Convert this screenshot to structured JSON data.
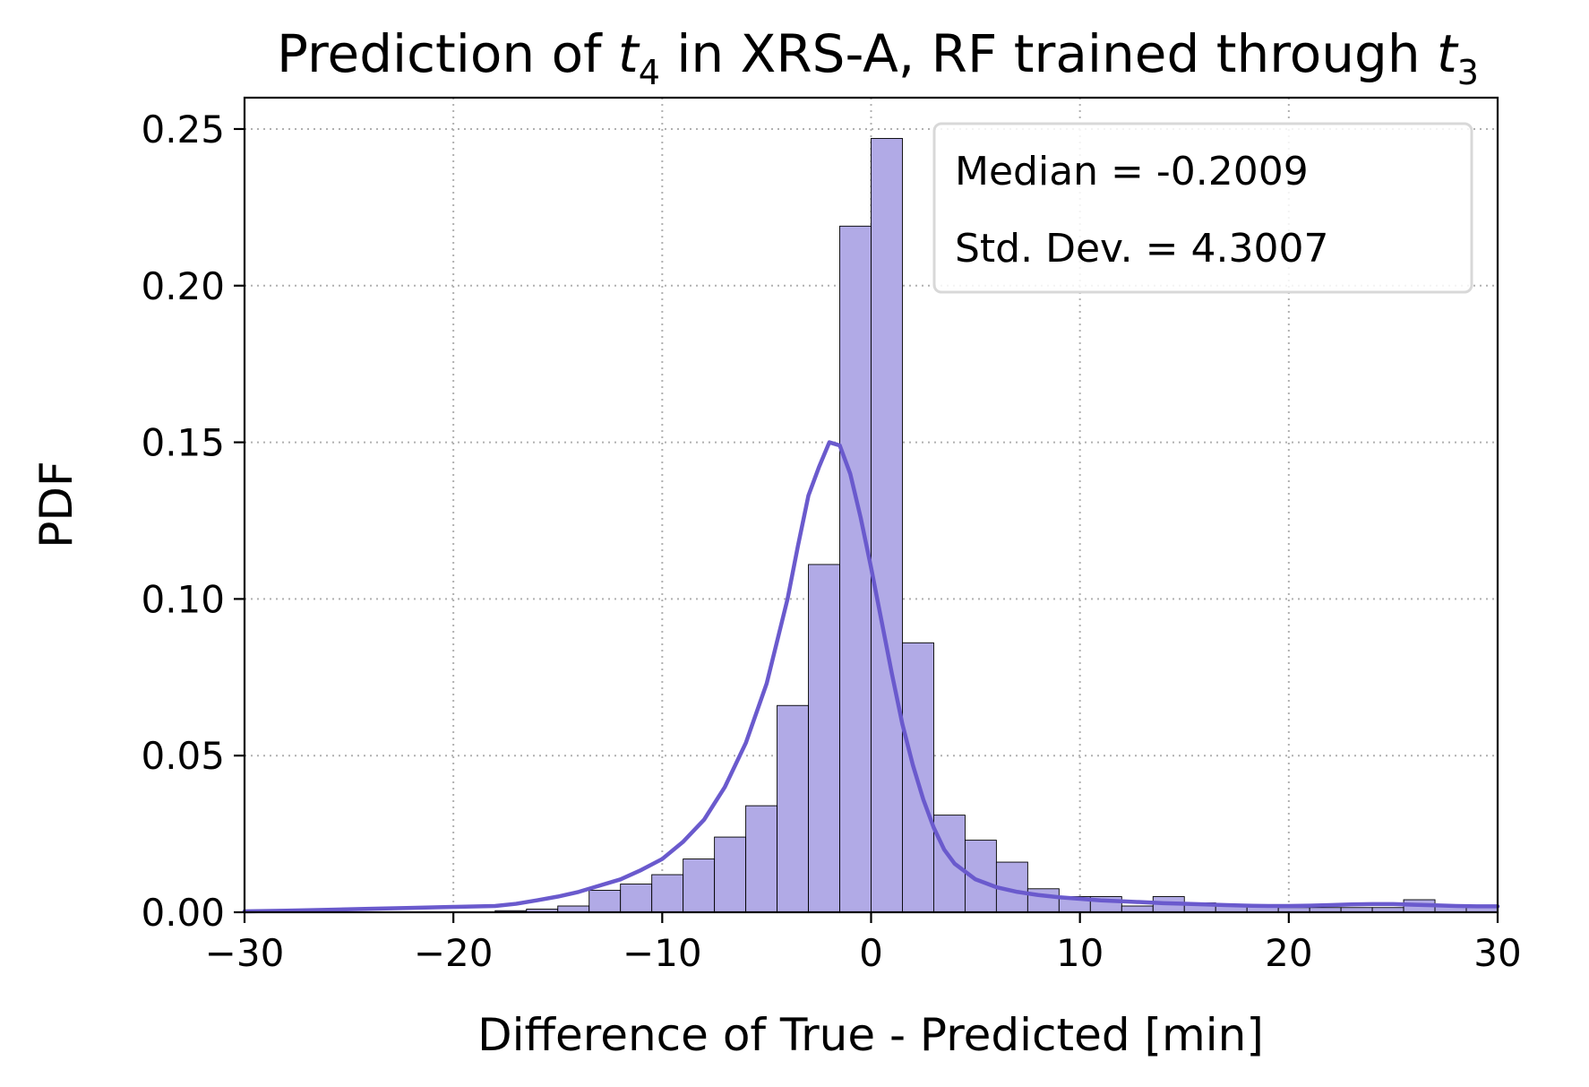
{
  "chart_data": {
    "type": "bar",
    "title": "Prediction of t4 in XRS-A, RF trained through t3",
    "title_parts": {
      "prefix": "Prediction of ",
      "var1": "t",
      "sub1": "4",
      "middle": " in XRS-A, RF trained through ",
      "var2": "t",
      "sub2": "3"
    },
    "xlabel": "Difference of True - Predicted [min]",
    "ylabel": "PDF",
    "xlim": [
      -30,
      30
    ],
    "ylim": [
      0,
      0.26
    ],
    "x_ticks": [
      -30,
      -20,
      -10,
      0,
      10,
      20,
      30
    ],
    "x_tick_labels": [
      "−30",
      "−20",
      "−10",
      "0",
      "10",
      "20",
      "30"
    ],
    "y_ticks": [
      0,
      0.05,
      0.1,
      0.15,
      0.2,
      0.25
    ],
    "y_tick_labels": [
      "0.00",
      "0.05",
      "0.10",
      "0.15",
      "0.20",
      "0.25"
    ],
    "grid": true,
    "legend": {
      "placement": "top-right",
      "lines": [
        "Median = -0.2009",
        "Std. Dev. = 4.3007"
      ]
    },
    "colors": {
      "bar_fill": "#b1aae6",
      "bar_edge": "#000000",
      "kde_line": "#6a5acd",
      "grid": "#b0b0b0"
    },
    "bin_width": 1.5,
    "histogram": {
      "bin_left_edges": [
        -30,
        -28.5,
        -27,
        -25.5,
        -24,
        -22.5,
        -21,
        -19.5,
        -18,
        -16.5,
        -15,
        -13.5,
        -12,
        -10.5,
        -9,
        -7.5,
        -6,
        -4.5,
        -3,
        -1.5,
        0,
        1.5,
        3,
        4.5,
        6,
        7.5,
        9,
        10.5,
        12,
        13.5,
        15,
        16.5,
        18,
        19.5,
        21,
        22.5,
        24,
        25.5,
        27,
        28.5
      ],
      "densities": [
        0,
        0,
        0,
        0,
        0,
        0,
        0,
        0,
        0.0005,
        0.001,
        0.002,
        0.007,
        0.009,
        0.012,
        0.017,
        0.024,
        0.034,
        0.066,
        0.111,
        0.219,
        0.247,
        0.086,
        0.031,
        0.023,
        0.016,
        0.0075,
        0.005,
        0.005,
        0.002,
        0.005,
        0.003,
        0.002,
        0.002,
        0.0015,
        0.0015,
        0.0015,
        0.0015,
        0.004,
        0.002,
        0.0015
      ]
    },
    "kde": {
      "x": [
        -30,
        -28,
        -26,
        -24,
        -22,
        -20,
        -18,
        -17,
        -16,
        -15,
        -14,
        -13,
        -12,
        -11,
        -10,
        -9,
        -8,
        -7,
        -6,
        -5,
        -4,
        -3.5,
        -3,
        -2.5,
        -2,
        -1.5,
        -1,
        -0.5,
        0,
        0.5,
        1,
        1.5,
        2,
        2.5,
        3,
        3.5,
        4,
        5,
        6,
        7,
        8,
        9,
        10,
        11,
        12,
        13,
        14,
        15,
        16,
        17,
        18,
        19,
        20,
        21,
        22,
        23,
        24,
        25,
        26,
        27,
        28,
        29,
        30
      ],
      "y": [
        0.0003,
        0.0005,
        0.0008,
        0.0011,
        0.0014,
        0.0017,
        0.002,
        0.0027,
        0.0038,
        0.005,
        0.0065,
        0.0085,
        0.0105,
        0.0135,
        0.017,
        0.0225,
        0.0295,
        0.04,
        0.054,
        0.073,
        0.1,
        0.117,
        0.133,
        0.142,
        0.15,
        0.149,
        0.14,
        0.126,
        0.11,
        0.093,
        0.076,
        0.06,
        0.047,
        0.036,
        0.027,
        0.02,
        0.0155,
        0.0105,
        0.008,
        0.0065,
        0.0055,
        0.0048,
        0.0043,
        0.0038,
        0.0035,
        0.0032,
        0.0029,
        0.0027,
        0.0025,
        0.0023,
        0.0021,
        0.002,
        0.002,
        0.0021,
        0.0023,
        0.0025,
        0.0026,
        0.0026,
        0.0024,
        0.0022,
        0.002,
        0.0019,
        0.0019
      ]
    }
  }
}
